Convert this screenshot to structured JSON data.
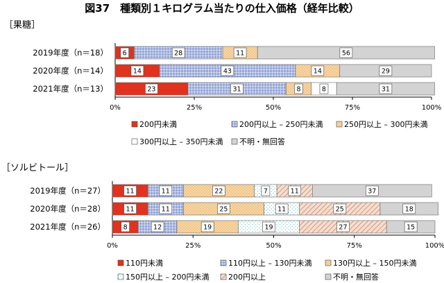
{
  "title": "図37　種類別１キログラム当たりの仕入価格（経年比較）",
  "chart_data": [
    {
      "type": "bar",
      "orientation": "horizontal",
      "stacked": "percent",
      "section_label": "［果糖］",
      "categories": [
        "2019年度（n＝18）",
        "2020年度（n＝14）",
        "2021年度（n＝13）"
      ],
      "xlim": [
        0,
        100
      ],
      "x_ticks": [
        "0%",
        "25%",
        "50%",
        "75%",
        "100%"
      ],
      "grid": false,
      "legend_position": "bottom",
      "series": [
        {
          "name": "200円未満",
          "values": [
            6,
            14,
            23
          ]
        },
        {
          "name": "200円以上 – 250円未満",
          "values": [
            28,
            43,
            31
          ]
        },
        {
          "name": "250円以上 – 300円未満",
          "values": [
            11,
            14,
            8
          ]
        },
        {
          "name": "300円以上 – 350円未満",
          "values": [
            0,
            0,
            8
          ]
        },
        {
          "name": "不明・無回答",
          "values": [
            56,
            29,
            31
          ]
        }
      ],
      "colors": [
        "#e0321e",
        "#6f87c9",
        "#f6c98a",
        "#ffffff",
        "#d3d3d3"
      ]
    },
    {
      "type": "bar",
      "orientation": "horizontal",
      "stacked": "percent",
      "section_label": "［ソルビトール］",
      "categories": [
        "2019年度（n＝27）",
        "2020年度（n＝28）",
        "2021年度（n＝26）"
      ],
      "xlim": [
        0,
        100
      ],
      "x_ticks": [
        "0%",
        "25%",
        "50%",
        "75%",
        "100%"
      ],
      "grid": false,
      "legend_position": "bottom",
      "series": [
        {
          "name": "110円未満",
          "values": [
            11,
            11,
            8
          ]
        },
        {
          "name": "110円以上 – 130円未満",
          "values": [
            11,
            11,
            12
          ]
        },
        {
          "name": "130円以上 – 150円未満",
          "values": [
            22,
            25,
            19
          ]
        },
        {
          "name": "150円以上 – 200円未満",
          "values": [
            7,
            11,
            19
          ]
        },
        {
          "name": "200円以上",
          "values": [
            11,
            25,
            27
          ]
        },
        {
          "name": "不明・無回答",
          "values": [
            37,
            18,
            15
          ]
        }
      ],
      "colors": [
        "#e0321e",
        "#6f87c9",
        "#f6c98a",
        "#ffffff",
        "#e8c4b0",
        "#d3d3d3"
      ]
    }
  ]
}
